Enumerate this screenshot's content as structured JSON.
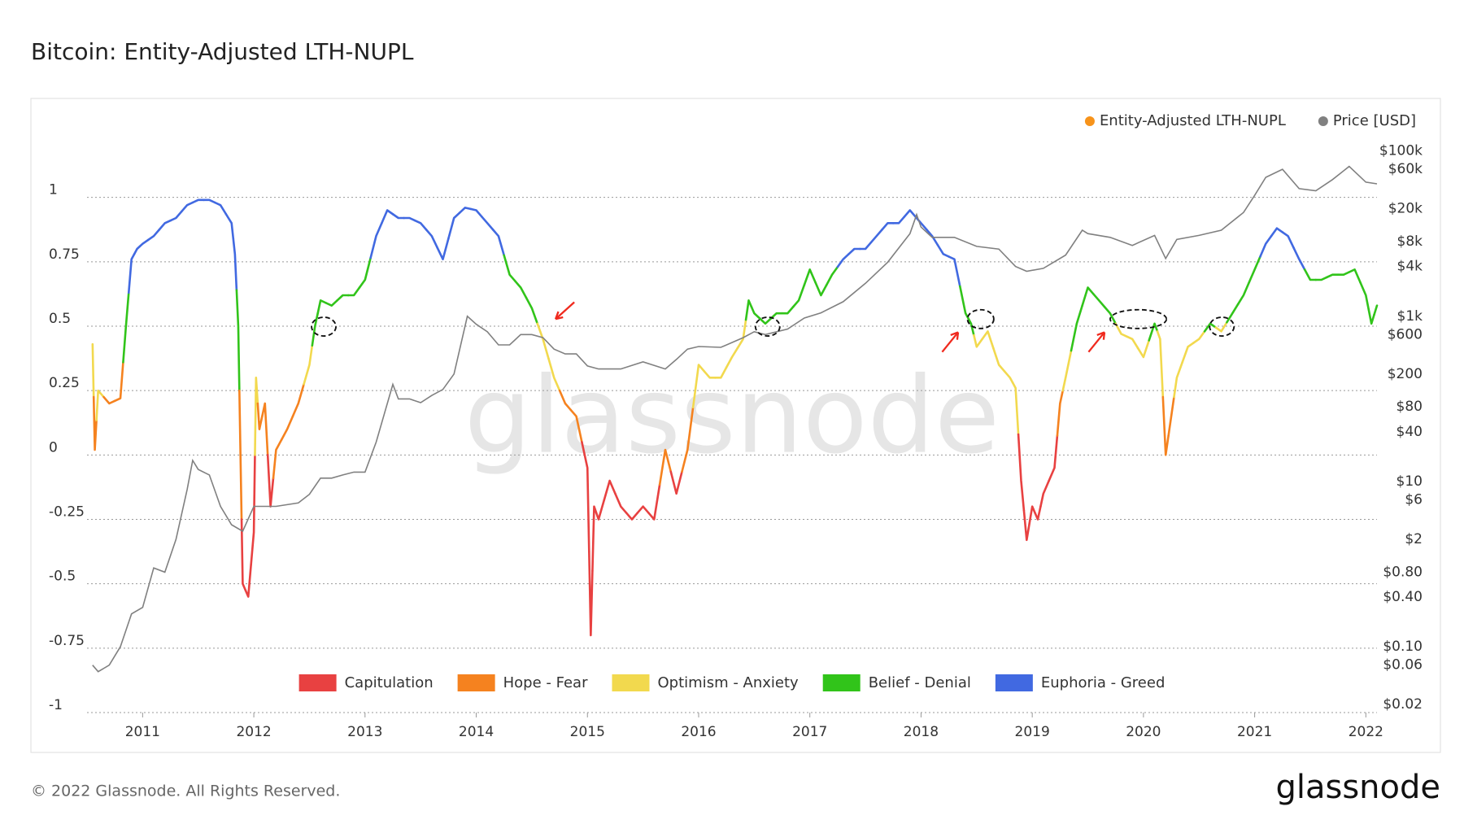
{
  "chart_data": {
    "type": "line",
    "title": "Bitcoin: Entity-Adjusted LTH-NUPL",
    "watermark": "glassnode",
    "footer": "© 2022 Glassnode. All Rights Reserved.",
    "logo": "glassnode",
    "xlim": [
      2010.5,
      2022.1
    ],
    "xticks": [
      2011,
      2012,
      2013,
      2014,
      2015,
      2016,
      2017,
      2018,
      2019,
      2020,
      2021,
      2022
    ],
    "ylim": [
      -1,
      1.22
    ],
    "yticks": [
      -1,
      -0.75,
      -0.5,
      -0.25,
      0,
      0.25,
      0.5,
      0.75,
      1
    ],
    "y2lim": [
      0.016,
      133000
    ],
    "y2scale": "log",
    "y2ticks": [
      {
        "value": 0.02,
        "label": "$0.02"
      },
      {
        "value": 0.06,
        "label": "$0.06"
      },
      {
        "value": 0.1,
        "label": "$0.10"
      },
      {
        "value": 0.4,
        "label": "$0.40"
      },
      {
        "value": 0.8,
        "label": "$0.80"
      },
      {
        "value": 2,
        "label": "$2"
      },
      {
        "value": 6,
        "label": "$6"
      },
      {
        "value": 10,
        "label": "$10"
      },
      {
        "value": 40,
        "label": "$40"
      },
      {
        "value": 80,
        "label": "$80"
      },
      {
        "value": 200,
        "label": "$200"
      },
      {
        "value": 600,
        "label": "$600"
      },
      {
        "value": 1000,
        "label": "$1k"
      },
      {
        "value": 4000,
        "label": "$4k"
      },
      {
        "value": 8000,
        "label": "$8k"
      },
      {
        "value": 20000,
        "label": "$20k"
      },
      {
        "value": 60000,
        "label": "$60k"
      },
      {
        "value": 100000,
        "label": "$100k"
      }
    ],
    "grid": true,
    "legend": "top-right",
    "zones": [
      {
        "name": "Capitulation",
        "color": "#e84141",
        "range": [
          -1,
          0
        ]
      },
      {
        "name": "Hope - Fear",
        "color": "#f5821f",
        "range": [
          0,
          0.25
        ]
      },
      {
        "name": "Optimism - Anxiety",
        "color": "#f2d94e",
        "range": [
          0.25,
          0.5
        ]
      },
      {
        "name": "Belief - Denial",
        "color": "#31c41a",
        "range": [
          0.5,
          0.75
        ]
      },
      {
        "name": "Euphoria - Greed",
        "color": "#4169e1",
        "range": [
          0.75,
          1
        ]
      }
    ],
    "series": [
      {
        "name": "Entity-Adjusted LTH-NUPL",
        "color": "#f7931a",
        "axis": "y",
        "x": [
          2010.55,
          2010.57,
          2010.6,
          2010.7,
          2010.8,
          2010.85,
          2010.9,
          2010.95,
          2011.0,
          2011.1,
          2011.2,
          2011.3,
          2011.4,
          2011.5,
          2011.6,
          2011.7,
          2011.8,
          2011.83,
          2011.86,
          2011.88,
          2011.9,
          2011.95,
          2012.0,
          2012.02,
          2012.05,
          2012.1,
          2012.15,
          2012.2,
          2012.3,
          2012.4,
          2012.5,
          2012.55,
          2012.6,
          2012.7,
          2012.8,
          2012.9,
          2013.0,
          2013.1,
          2013.2,
          2013.3,
          2013.4,
          2013.5,
          2013.6,
          2013.7,
          2013.8,
          2013.9,
          2014.0,
          2014.1,
          2014.2,
          2014.3,
          2014.4,
          2014.5,
          2014.6,
          2014.7,
          2014.8,
          2014.9,
          2015.0,
          2015.03,
          2015.06,
          2015.1,
          2015.2,
          2015.3,
          2015.4,
          2015.5,
          2015.6,
          2015.7,
          2015.8,
          2015.9,
          2016.0,
          2016.1,
          2016.2,
          2016.3,
          2016.4,
          2016.45,
          2016.5,
          2016.6,
          2016.7,
          2016.8,
          2016.9,
          2017.0,
          2017.1,
          2017.2,
          2017.3,
          2017.4,
          2017.5,
          2017.6,
          2017.7,
          2017.8,
          2017.9,
          2018.0,
          2018.1,
          2018.2,
          2018.3,
          2018.4,
          2018.45,
          2018.5,
          2018.6,
          2018.7,
          2018.8,
          2018.85,
          2018.9,
          2018.95,
          2019.0,
          2019.05,
          2019.1,
          2019.2,
          2019.25,
          2019.3,
          2019.4,
          2019.5,
          2019.6,
          2019.7,
          2019.8,
          2019.9,
          2020.0,
          2020.1,
          2020.15,
          2020.2,
          2020.25,
          2020.3,
          2020.4,
          2020.5,
          2020.6,
          2020.7,
          2020.8,
          2020.9,
          2021.0,
          2021.1,
          2021.2,
          2021.3,
          2021.4,
          2021.5,
          2021.6,
          2021.7,
          2021.8,
          2021.9,
          2022.0,
          2022.05,
          2022.1
        ],
        "values": [
          0.43,
          0.02,
          0.25,
          0.2,
          0.22,
          0.5,
          0.76,
          0.8,
          0.82,
          0.85,
          0.9,
          0.92,
          0.97,
          0.99,
          0.99,
          0.97,
          0.9,
          0.78,
          0.5,
          0.0,
          -0.5,
          -0.55,
          -0.3,
          0.3,
          0.1,
          0.2,
          -0.2,
          0.02,
          0.1,
          0.2,
          0.35,
          0.5,
          0.6,
          0.58,
          0.62,
          0.62,
          0.68,
          0.85,
          0.95,
          0.92,
          0.92,
          0.9,
          0.85,
          0.76,
          0.92,
          0.96,
          0.95,
          0.9,
          0.85,
          0.7,
          0.65,
          0.57,
          0.45,
          0.3,
          0.2,
          0.15,
          -0.05,
          -0.7,
          -0.2,
          -0.25,
          -0.1,
          -0.2,
          -0.25,
          -0.2,
          -0.25,
          0.02,
          -0.15,
          0.02,
          0.35,
          0.3,
          0.3,
          0.38,
          0.45,
          0.6,
          0.55,
          0.51,
          0.55,
          0.55,
          0.6,
          0.72,
          0.62,
          0.7,
          0.76,
          0.8,
          0.8,
          0.85,
          0.9,
          0.9,
          0.95,
          0.9,
          0.85,
          0.78,
          0.76,
          0.55,
          0.51,
          0.42,
          0.48,
          0.35,
          0.3,
          0.26,
          -0.1,
          -0.33,
          -0.2,
          -0.25,
          -0.15,
          -0.05,
          0.2,
          0.3,
          0.51,
          0.65,
          0.6,
          0.55,
          0.47,
          0.45,
          0.38,
          0.51,
          0.45,
          0.0,
          0.15,
          0.3,
          0.42,
          0.45,
          0.51,
          0.48,
          0.55,
          0.62,
          0.72,
          0.82,
          0.88,
          0.85,
          0.76,
          0.68,
          0.68,
          0.7,
          0.7,
          0.72,
          0.62,
          0.51,
          0.58
        ]
      },
      {
        "name": "Price [USD]",
        "color": "#808080",
        "axis": "y2",
        "x": [
          2010.55,
          2010.6,
          2010.7,
          2010.8,
          2010.9,
          2011.0,
          2011.1,
          2011.2,
          2011.3,
          2011.4,
          2011.45,
          2011.5,
          2011.6,
          2011.7,
          2011.8,
          2011.9,
          2012.0,
          2012.1,
          2012.2,
          2012.4,
          2012.5,
          2012.6,
          2012.7,
          2012.8,
          2012.9,
          2013.0,
          2013.1,
          2013.25,
          2013.3,
          2013.4,
          2013.5,
          2013.6,
          2013.7,
          2013.8,
          2013.92,
          2014.0,
          2014.1,
          2014.2,
          2014.3,
          2014.4,
          2014.5,
          2014.6,
          2014.7,
          2014.8,
          2014.9,
          2015.0,
          2015.1,
          2015.3,
          2015.5,
          2015.7,
          2015.8,
          2015.9,
          2016.0,
          2016.2,
          2016.4,
          2016.5,
          2016.6,
          2016.8,
          2016.95,
          2017.1,
          2017.3,
          2017.5,
          2017.7,
          2017.9,
          2017.96,
          2018.0,
          2018.1,
          2018.3,
          2018.5,
          2018.7,
          2018.85,
          2018.95,
          2019.1,
          2019.3,
          2019.45,
          2019.5,
          2019.7,
          2019.9,
          2020.1,
          2020.2,
          2020.3,
          2020.5,
          2020.7,
          2020.9,
          2021.0,
          2021.1,
          2021.25,
          2021.4,
          2021.55,
          2021.7,
          2021.85,
          2022.0,
          2022.1
        ],
        "values": [
          0.06,
          0.05,
          0.06,
          0.1,
          0.25,
          0.3,
          0.9,
          0.8,
          2,
          8,
          18,
          14,
          12,
          5,
          3,
          2.5,
          5,
          5,
          5,
          5.5,
          7,
          11,
          11,
          12,
          13,
          13,
          30,
          150,
          100,
          100,
          90,
          110,
          130,
          200,
          1000,
          800,
          650,
          450,
          450,
          600,
          600,
          550,
          400,
          350,
          350,
          250,
          230,
          230,
          280,
          230,
          300,
          400,
          430,
          420,
          550,
          650,
          600,
          700,
          950,
          1100,
          1500,
          2500,
          4500,
          10000,
          17000,
          12000,
          9000,
          9000,
          7000,
          6500,
          4000,
          3500,
          3800,
          5500,
          11000,
          10000,
          9000,
          7200,
          9500,
          5000,
          8500,
          9500,
          11000,
          18000,
          29000,
          48000,
          60000,
          35000,
          33000,
          45000,
          65000,
          42000,
          40000
        ]
      }
    ]
  }
}
